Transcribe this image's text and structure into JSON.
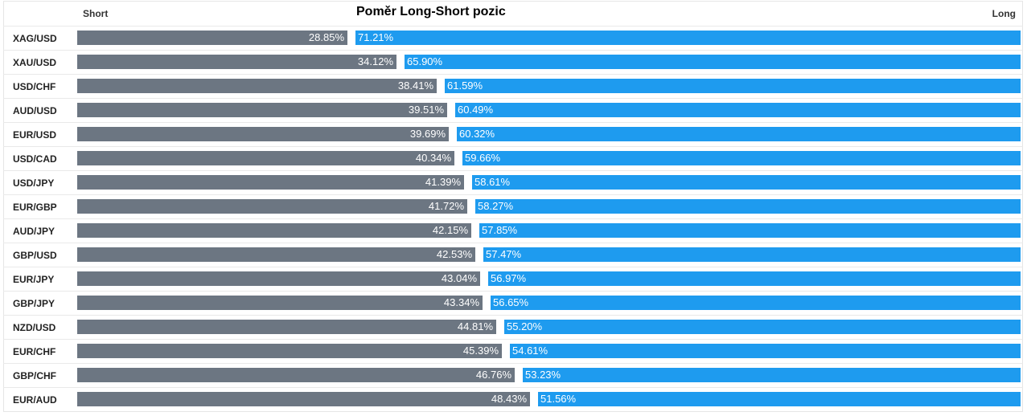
{
  "chart_data": {
    "type": "bar",
    "title": "Poměr Long-Short pozic",
    "short_label": "Short",
    "long_label": "Long",
    "categories": [
      "XAG/USD",
      "XAU/USD",
      "USD/CHF",
      "AUD/USD",
      "EUR/USD",
      "USD/CAD",
      "USD/JPY",
      "EUR/GBP",
      "AUD/JPY",
      "GBP/USD",
      "EUR/JPY",
      "GBP/JPY",
      "NZD/USD",
      "EUR/CHF",
      "GBP/CHF",
      "EUR/AUD"
    ],
    "series": [
      {
        "name": "Short",
        "values": [
          28.85,
          34.12,
          38.41,
          39.51,
          39.69,
          40.34,
          41.39,
          41.72,
          42.15,
          42.53,
          43.04,
          43.34,
          44.81,
          45.39,
          46.76,
          48.43
        ]
      },
      {
        "name": "Long",
        "values": [
          71.21,
          65.9,
          61.59,
          60.49,
          60.32,
          59.66,
          58.61,
          58.27,
          57.85,
          57.47,
          56.97,
          56.65,
          55.2,
          54.61,
          53.23,
          51.56
        ]
      }
    ],
    "value_labels": {
      "short": [
        "28.85%",
        "34.12%",
        "38.41%",
        "39.51%",
        "39.69%",
        "40.34%",
        "41.39%",
        "41.72%",
        "42.15%",
        "42.53%",
        "43.04%",
        "43.34%",
        "44.81%",
        "45.39%",
        "46.76%",
        "48.43%"
      ],
      "long": [
        "71.21%",
        "65.90%",
        "61.59%",
        "60.49%",
        "60.32%",
        "59.66%",
        "58.61%",
        "58.27%",
        "57.85%",
        "57.47%",
        "56.97%",
        "56.65%",
        "55.20%",
        "54.61%",
        "53.23%",
        "51.56%"
      ]
    },
    "colors": {
      "short": "#6c7682",
      "long": "#1e9bef"
    },
    "grid": false,
    "legend": "none"
  }
}
